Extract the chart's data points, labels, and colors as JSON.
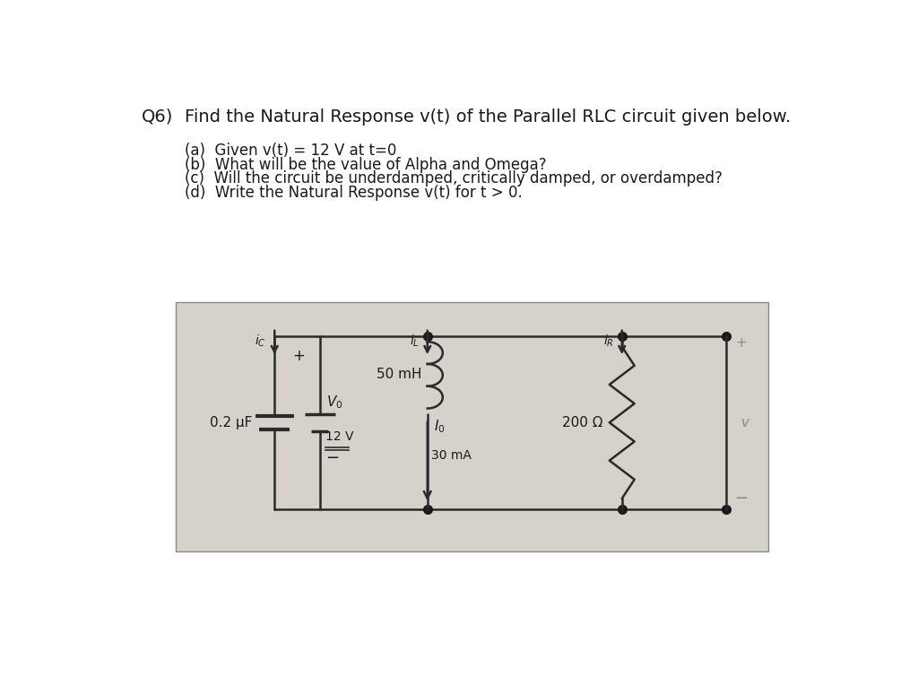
{
  "title_q": "Q6)",
  "title_text": "Find the Natural Response v(t) of the Parallel RLC circuit given below.",
  "parts": [
    "(a)  Given v(t) = 12 V at t=0",
    "(b)  What will be the value of Alpha and Omega?",
    "(c)  Will the circuit be underdamped, critically damped, or overdamped?",
    "(d)  Write the Natural Response v(t) for t > 0."
  ],
  "bg_color": "#ffffff",
  "circuit_bg": "#d6d2ca",
  "text_color": "#1a1a1a",
  "wire_color": "#2a2a2a",
  "font_size_title": 14,
  "font_size_parts": 12,
  "font_size_circuit": 11
}
